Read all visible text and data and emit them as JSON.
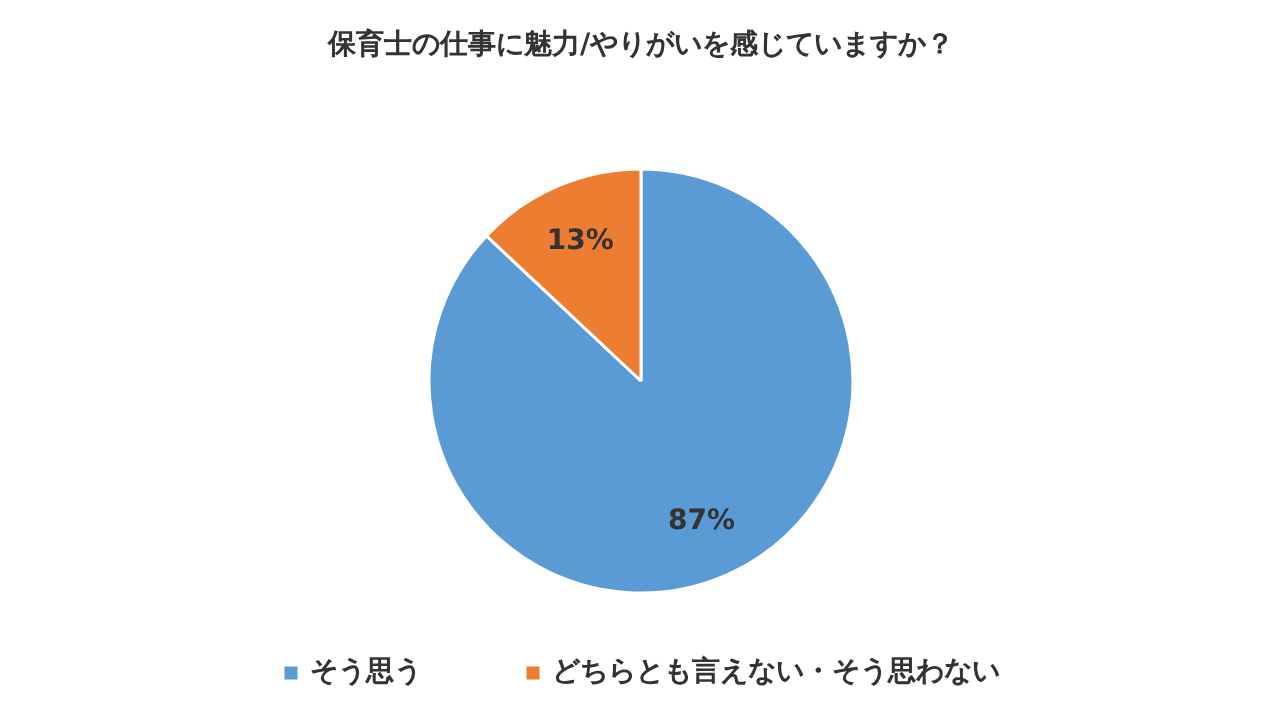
{
  "chart_data": {
    "type": "pie",
    "title": "保育士の仕事に魅力/やりがいを感じていますか？",
    "categories": [
      "そう思う",
      "どちらとも言えない・そう思わない"
    ],
    "values": [
      87,
      13
    ],
    "colors": [
      "#5b9bd5",
      "#ed7d31"
    ],
    "value_labels": [
      "87%",
      "13%"
    ],
    "legend": "bottom"
  }
}
